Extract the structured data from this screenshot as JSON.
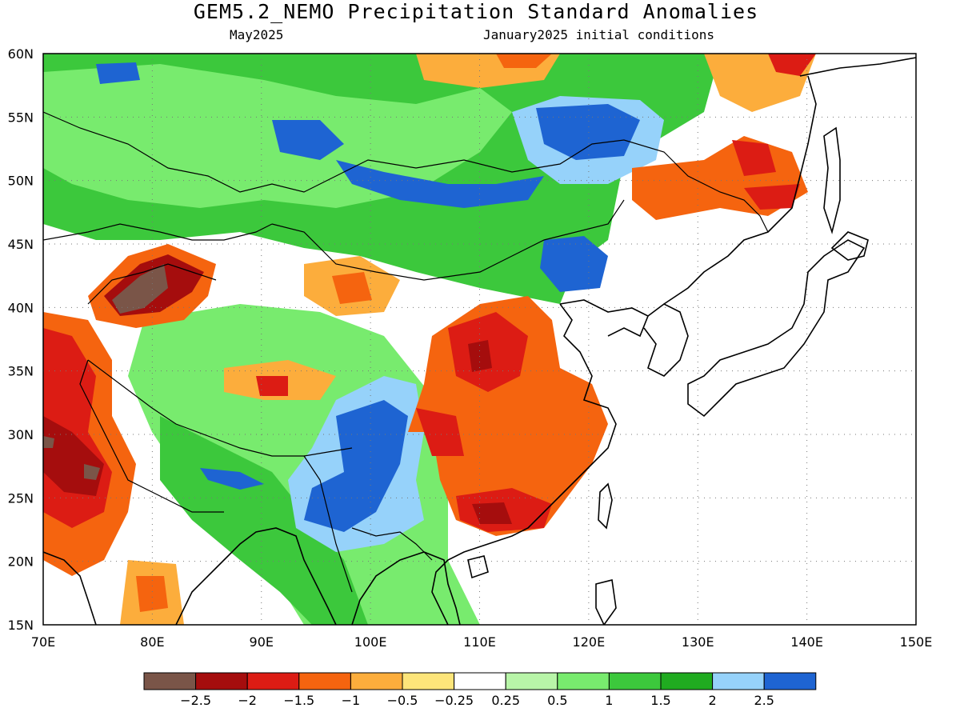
{
  "title": "GEM5.2_NEMO Precipitation Standard Anomalies",
  "valid_month": "May2025",
  "initial_conditions": "January2025 initial conditions",
  "map": {
    "lon_ticks": [
      "70E",
      "80E",
      "90E",
      "100E",
      "110E",
      "120E",
      "130E",
      "140E",
      "150E"
    ],
    "lat_ticks": [
      "60N",
      "55N",
      "50N",
      "45N",
      "40N",
      "35N",
      "30N",
      "25N",
      "20N",
      "15N"
    ],
    "lon_range": [
      70,
      150
    ],
    "lat_range": [
      15,
      60
    ],
    "grid": "dotted"
  },
  "colorbar": {
    "labels": [
      "-2.5",
      "-2",
      "-1.5",
      "-1",
      "-0.5",
      "-0.25",
      "0.25",
      "0.5",
      "1",
      "1.5",
      "2",
      "2.5"
    ],
    "colors": [
      "#7a5548",
      "#a50d0d",
      "#dc1c14",
      "#f5640f",
      "#fcad3c",
      "#fde57a",
      "#ffffff",
      "#b8f5a8",
      "#78eb6e",
      "#3cc83c",
      "#20ab20",
      "#96d2fa",
      "#1e64d2"
    ]
  },
  "anomaly_regions": [
    {
      "name": "northern-band-positive",
      "value": 1.5
    },
    {
      "name": "siberia-blue",
      "value": 2.5
    },
    {
      "name": "baikal-blue",
      "value": 2.5
    },
    {
      "name": "central-china-positive",
      "value": 1.0
    },
    {
      "name": "sichuan-myanmar-blue",
      "value": 2.5
    },
    {
      "name": "south-china-dry",
      "value": -1.5
    },
    {
      "name": "east-china-dry",
      "value": -1.0
    },
    {
      "name": "kyrgyz-dry",
      "value": -2.5
    },
    {
      "name": "pakistan-dry",
      "value": -2.0
    },
    {
      "name": "far-east-dry",
      "value": -1.5
    },
    {
      "name": "inner-mongolia-dry",
      "value": -0.5
    },
    {
      "name": "tibet-dry-spots",
      "value": -1.0
    }
  ]
}
